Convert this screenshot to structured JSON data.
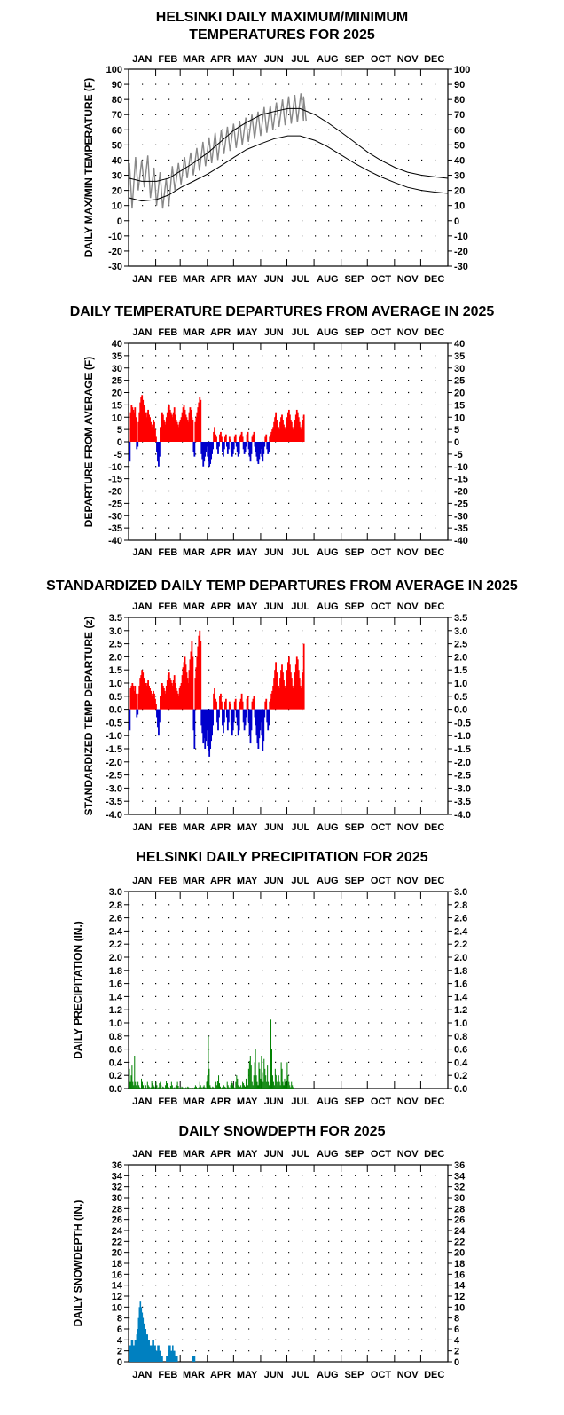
{
  "year": "2025",
  "months": [
    "JAN",
    "FEB",
    "MAR",
    "APR",
    "MAY",
    "JUN",
    "JUL",
    "AUG",
    "SEP",
    "OCT",
    "NOV",
    "DEC"
  ],
  "colors": {
    "observed": "#888888",
    "normal_line": "#000000",
    "positive": "#ff0000",
    "negative": "#0000cc",
    "precip": "#008000",
    "snow": "#0080c0"
  },
  "chart_data": [
    {
      "type": "line",
      "title_lines": [
        "HELSINKI DAILY MAXIMUM/MINIMUM",
        "TEMPERATURES FOR 2025"
      ],
      "ylabel": "DAILY MAX/MIN TEMPERATURE (F)",
      "ylim": [
        -30,
        100
      ],
      "yticks": [
        "100",
        "90",
        "80",
        "70",
        "60",
        "50",
        "40",
        "30",
        "20",
        "10",
        "0",
        "-10",
        "-20",
        "-30"
      ],
      "grid": true,
      "series": [
        {
          "kind": "observed_band",
          "day": [
            1,
            8,
            15,
            22,
            29,
            36,
            43,
            50,
            57,
            64,
            71,
            78,
            85,
            92,
            99,
            106,
            113,
            120,
            127,
            134,
            141,
            148,
            155,
            162,
            169,
            176,
            183,
            190,
            197,
            200
          ],
          "high": [
            38,
            42,
            40,
            43,
            35,
            32,
            28,
            36,
            38,
            42,
            45,
            48,
            52,
            55,
            58,
            60,
            62,
            64,
            66,
            68,
            70,
            72,
            75,
            76,
            78,
            80,
            82,
            83,
            84,
            82
          ],
          "low": [
            8,
            20,
            22,
            15,
            10,
            8,
            10,
            20,
            24,
            28,
            30,
            33,
            36,
            38,
            40,
            44,
            46,
            48,
            50,
            52,
            54,
            56,
            58,
            60,
            62,
            63,
            64,
            65,
            66,
            66
          ]
        },
        {
          "kind": "normal_high",
          "day": [
            1,
            15,
            32,
            46,
            60,
            74,
            91,
            105,
            121,
            135,
            152,
            166,
            182,
            196,
            213,
            227,
            244,
            258,
            274,
            288,
            305,
            319,
            335,
            349,
            365
          ],
          "value": [
            28,
            26,
            26,
            28,
            33,
            38,
            45,
            52,
            60,
            65,
            70,
            72,
            74,
            74,
            70,
            65,
            58,
            52,
            45,
            40,
            35,
            32,
            30,
            29,
            28
          ]
        },
        {
          "kind": "normal_low",
          "day": [
            1,
            15,
            32,
            46,
            60,
            74,
            91,
            105,
            121,
            135,
            152,
            166,
            182,
            196,
            213,
            227,
            244,
            258,
            274,
            288,
            305,
            319,
            335,
            349,
            365
          ],
          "value": [
            15,
            13,
            14,
            17,
            22,
            26,
            31,
            36,
            42,
            47,
            51,
            54,
            56,
            56,
            53,
            49,
            43,
            38,
            33,
            29,
            25,
            22,
            20,
            19,
            18
          ]
        }
      ]
    },
    {
      "type": "bar",
      "title_lines": [
        "DAILY TEMPERATURE DEPARTURES FROM AVERAGE IN 2025"
      ],
      "ylabel": "DEPARTURE FROM AVERAGE (F)",
      "ylim": [
        -40,
        40
      ],
      "yticks": [
        "40",
        "35",
        "30",
        "25",
        "20",
        "15",
        "10",
        "5",
        "0",
        "-5",
        "-10",
        "-15",
        "-20",
        "-25",
        "-30",
        "-35",
        "-40"
      ],
      "grid": true,
      "day_end": 200,
      "values": [
        -8,
        12,
        15,
        14,
        13,
        12,
        14,
        10,
        -3,
        -2,
        8,
        12,
        16,
        18,
        19,
        17,
        15,
        14,
        12,
        10,
        12,
        13,
        11,
        10,
        8,
        6,
        7,
        9,
        8,
        5,
        2,
        -4,
        -8,
        -10,
        -6,
        6,
        10,
        12,
        11,
        9,
        8,
        7,
        10,
        12,
        14,
        15,
        13,
        12,
        11,
        10,
        12,
        14,
        11,
        9,
        8,
        7,
        6,
        8,
        9,
        10,
        12,
        14,
        15,
        13,
        11,
        10,
        9,
        8,
        12,
        14,
        13,
        10,
        9,
        -4,
        -6,
        8,
        10,
        12,
        14,
        16,
        18,
        17,
        -5,
        -7,
        -10,
        -8,
        -6,
        -4,
        -2,
        -6,
        -8,
        -10,
        -9,
        -7,
        -5,
        -3,
        4,
        6,
        3,
        2,
        -3,
        -5,
        -2,
        3,
        4,
        2,
        -4,
        -6,
        -3,
        2,
        3,
        -2,
        -5,
        -3,
        2,
        1,
        -4,
        -6,
        -5,
        -3,
        2,
        3,
        -2,
        -4,
        -6,
        -5,
        2,
        3,
        4,
        2,
        -3,
        -5,
        -4,
        -2,
        3,
        4,
        -3,
        -6,
        -8,
        -5,
        2,
        3,
        4,
        -2,
        -4,
        -6,
        -8,
        -9,
        -7,
        -5,
        -3,
        -6,
        -8,
        -5,
        -2,
        2,
        3,
        -3,
        -5,
        -4,
        2,
        3,
        4,
        5,
        6,
        8,
        10,
        12,
        9,
        7,
        6,
        5,
        8,
        10,
        11,
        9,
        7,
        6,
        5,
        8,
        10,
        12,
        13,
        11,
        9,
        8,
        6,
        5,
        7,
        9,
        11,
        13,
        12,
        10,
        8,
        6,
        5,
        7,
        9,
        11
      ]
    },
    {
      "type": "bar",
      "title_lines": [
        "STANDARDIZED DAILY TEMP DEPARTURES FROM AVERAGE IN 2025"
      ],
      "ylabel": "STANDARDIZED TEMP DEPARTURE (z)",
      "ylim": [
        -4,
        3.5
      ],
      "yticks": [
        "3.5",
        "3.0",
        "2.5",
        "2.0",
        "1.5",
        "1.0",
        "0.5",
        "0.0",
        "-0.5",
        "-1.0",
        "-1.5",
        "-2.0",
        "-2.5",
        "-3.0",
        "-3.5",
        "-4.0"
      ],
      "grid": true,
      "day_end": 200,
      "values": [
        -0.8,
        0.8,
        0.9,
        1.0,
        0.9,
        0.7,
        0.9,
        0.6,
        -0.3,
        -0.2,
        0.6,
        0.9,
        1.2,
        1.3,
        1.5,
        1.4,
        1.2,
        1.1,
        1.0,
        0.9,
        1.0,
        1.1,
        0.9,
        0.8,
        0.7,
        0.5,
        0.6,
        0.7,
        0.6,
        0.4,
        0.2,
        -0.3,
        -0.7,
        -1.0,
        -0.5,
        0.5,
        0.8,
        1.0,
        0.9,
        0.8,
        0.7,
        0.6,
        0.9,
        1.1,
        1.3,
        1.4,
        1.2,
        1.1,
        1.0,
        0.9,
        1.1,
        1.3,
        1.0,
        0.8,
        0.7,
        0.6,
        0.5,
        0.8,
        0.9,
        1.0,
        1.3,
        1.6,
        1.8,
        2.0,
        1.7,
        1.4,
        1.2,
        1.0,
        1.5,
        1.9,
        2.2,
        2.6,
        2.0,
        -0.8,
        -1.5,
        1.2,
        1.6,
        2.0,
        2.4,
        2.8,
        3.0,
        2.6,
        -0.6,
        -0.9,
        -1.3,
        -1.1,
        -1.5,
        -1.2,
        -0.8,
        -1.4,
        -1.6,
        -1.8,
        -1.5,
        -1.2,
        -1.0,
        -0.6,
        0.6,
        0.8,
        0.4,
        0.3,
        -0.5,
        -0.8,
        -0.3,
        0.5,
        0.6,
        0.3,
        -0.6,
        -0.9,
        -0.5,
        0.3,
        0.4,
        -0.3,
        -0.8,
        -0.5,
        0.3,
        0.2,
        -0.6,
        -1.0,
        -0.8,
        -0.5,
        0.3,
        0.4,
        -0.3,
        -0.6,
        -1.0,
        -0.8,
        0.3,
        0.4,
        0.6,
        0.3,
        -0.5,
        -0.8,
        -0.6,
        -0.3,
        0.4,
        0.5,
        -0.5,
        -1.0,
        -1.3,
        -0.8,
        0.3,
        0.4,
        0.5,
        -0.3,
        -0.6,
        -1.0,
        -1.3,
        -1.5,
        -1.1,
        -0.8,
        -0.5,
        -1.0,
        -1.6,
        -1.2,
        -0.3,
        0.3,
        0.4,
        -0.5,
        -0.8,
        -0.6,
        0.3,
        0.4,
        0.6,
        0.7,
        0.9,
        1.2,
        1.5,
        1.8,
        1.4,
        1.1,
        0.9,
        0.8,
        1.2,
        1.5,
        1.7,
        1.4,
        1.1,
        0.9,
        0.8,
        1.2,
        1.5,
        1.8,
        2.0,
        1.7,
        1.4,
        1.2,
        0.9,
        0.8,
        1.1,
        1.4,
        1.7,
        2.0,
        1.9,
        1.5,
        1.2,
        0.9,
        0.8,
        1.1,
        1.4,
        2.5
      ]
    },
    {
      "type": "bar",
      "title_lines": [
        "HELSINKI DAILY PRECIPITATION FOR 2025"
      ],
      "ylabel": "DAILY PRECIPITATION (IN.)",
      "ylim": [
        0,
        3.0
      ],
      "yticks": [
        "3.0",
        "2.8",
        "2.6",
        "2.4",
        "2.2",
        "2.0",
        "1.8",
        "1.6",
        "1.4",
        "1.2",
        "1.0",
        "0.8",
        "0.6",
        "0.4",
        "0.2",
        "0.0"
      ],
      "grid": true,
      "day_end": 200,
      "values": [
        0.3,
        0.1,
        0.2,
        0.35,
        0.1,
        0.05,
        0.5,
        0.1,
        0.05,
        0,
        0.1,
        0.05,
        0.02,
        0,
        0.15,
        0.1,
        0.05,
        0,
        0.08,
        0.05,
        0,
        0.1,
        0.05,
        0.03,
        0,
        0.02,
        0.12,
        0.08,
        0.05,
        0.03,
        0,
        0.1,
        0.05,
        0,
        0.02,
        0.08,
        0.1,
        0.05,
        0,
        0.03,
        0.02,
        0,
        0.05,
        0.12,
        0.08,
        0,
        0.02,
        0,
        0.04,
        0.1,
        0.05,
        0,
        0.02,
        0,
        0.03,
        0.05,
        0.1,
        0.04,
        0,
        0.02,
        0,
        0.03,
        0.02,
        0,
        0.01,
        0,
        0.02,
        0,
        0.03,
        0.02,
        0,
        0.01,
        0,
        0.02,
        0.01,
        0,
        0.02,
        0.05,
        0.03,
        0.01,
        0,
        0.02,
        0.1,
        0.05,
        0.02,
        0,
        0.03,
        0.05,
        0.02,
        0,
        0.1,
        0.2,
        0.8,
        0.3,
        0.05,
        0.02,
        0,
        0.03,
        0.02,
        0,
        0.05,
        0.1,
        0.05,
        0.12,
        0.2,
        0.08,
        0.03,
        0,
        0.02,
        0,
        0.05,
        0.03,
        0.02,
        0,
        0.1,
        0.05,
        0.02,
        0,
        0.05,
        0.12,
        0.08,
        0.05,
        0.02,
        0,
        0.1,
        0.2,
        0.15,
        0.05,
        0.02,
        0.03,
        0.05,
        0.02,
        0.1,
        0.08,
        0.05,
        0.03,
        0.15,
        0.1,
        0.05,
        0.3,
        0.42,
        0.5,
        0.35,
        0.1,
        0.05,
        0.2,
        0.4,
        0.6,
        0.2,
        0.1,
        0.05,
        0.4,
        0.3,
        0.15,
        0.5,
        0.25,
        0.1,
        0.45,
        0.3,
        0.2,
        0.1,
        0.35,
        0.1,
        0.05,
        0.3,
        1.05,
        0.6,
        0.2,
        0.1,
        0.05,
        0.3,
        0.2,
        0.1,
        0.05,
        0.2,
        0.1,
        0.05,
        0.4,
        0.3,
        0.1,
        0.05,
        0.15,
        0.1,
        0.05,
        0.4,
        0.2,
        0.1,
        0.05,
        0.02,
        0.1,
        0.05,
        0.02,
        0,
        0,
        0,
        0,
        0,
        0,
        0,
        0,
        0,
        0,
        0,
        0
      ]
    },
    {
      "type": "area",
      "title_lines": [
        "DAILY SNOWDEPTH FOR 2025"
      ],
      "ylabel": "DAILY SNOWDEPTH (IN.)",
      "ylim": [
        0,
        36
      ],
      "yticks": [
        "36",
        "34",
        "32",
        "30",
        "28",
        "26",
        "24",
        "22",
        "20",
        "18",
        "16",
        "14",
        "12",
        "10",
        "8",
        "6",
        "4",
        "2",
        "0"
      ],
      "grid": true,
      "day_end": 100,
      "values": [
        3,
        3,
        4,
        4,
        3,
        3,
        4,
        4,
        5,
        6,
        8,
        10,
        11,
        10,
        9,
        8,
        7,
        6,
        6,
        5,
        5,
        4,
        4,
        3,
        3,
        3,
        4,
        4,
        3,
        3,
        2,
        2,
        3,
        3,
        2,
        2,
        1,
        1,
        0,
        0,
        0,
        0,
        1,
        1,
        2,
        3,
        3,
        2,
        2,
        3,
        2,
        2,
        1,
        1,
        1,
        0,
        0,
        0,
        0,
        0,
        0,
        0,
        0,
        0,
        0,
        0,
        0,
        0,
        0,
        0,
        0,
        0,
        1,
        1,
        1,
        0,
        0,
        0,
        0,
        0,
        0,
        0,
        0,
        0,
        0,
        0,
        0,
        0,
        0,
        0,
        0,
        0,
        0,
        0,
        0,
        0,
        0,
        0,
        0,
        0
      ]
    }
  ]
}
